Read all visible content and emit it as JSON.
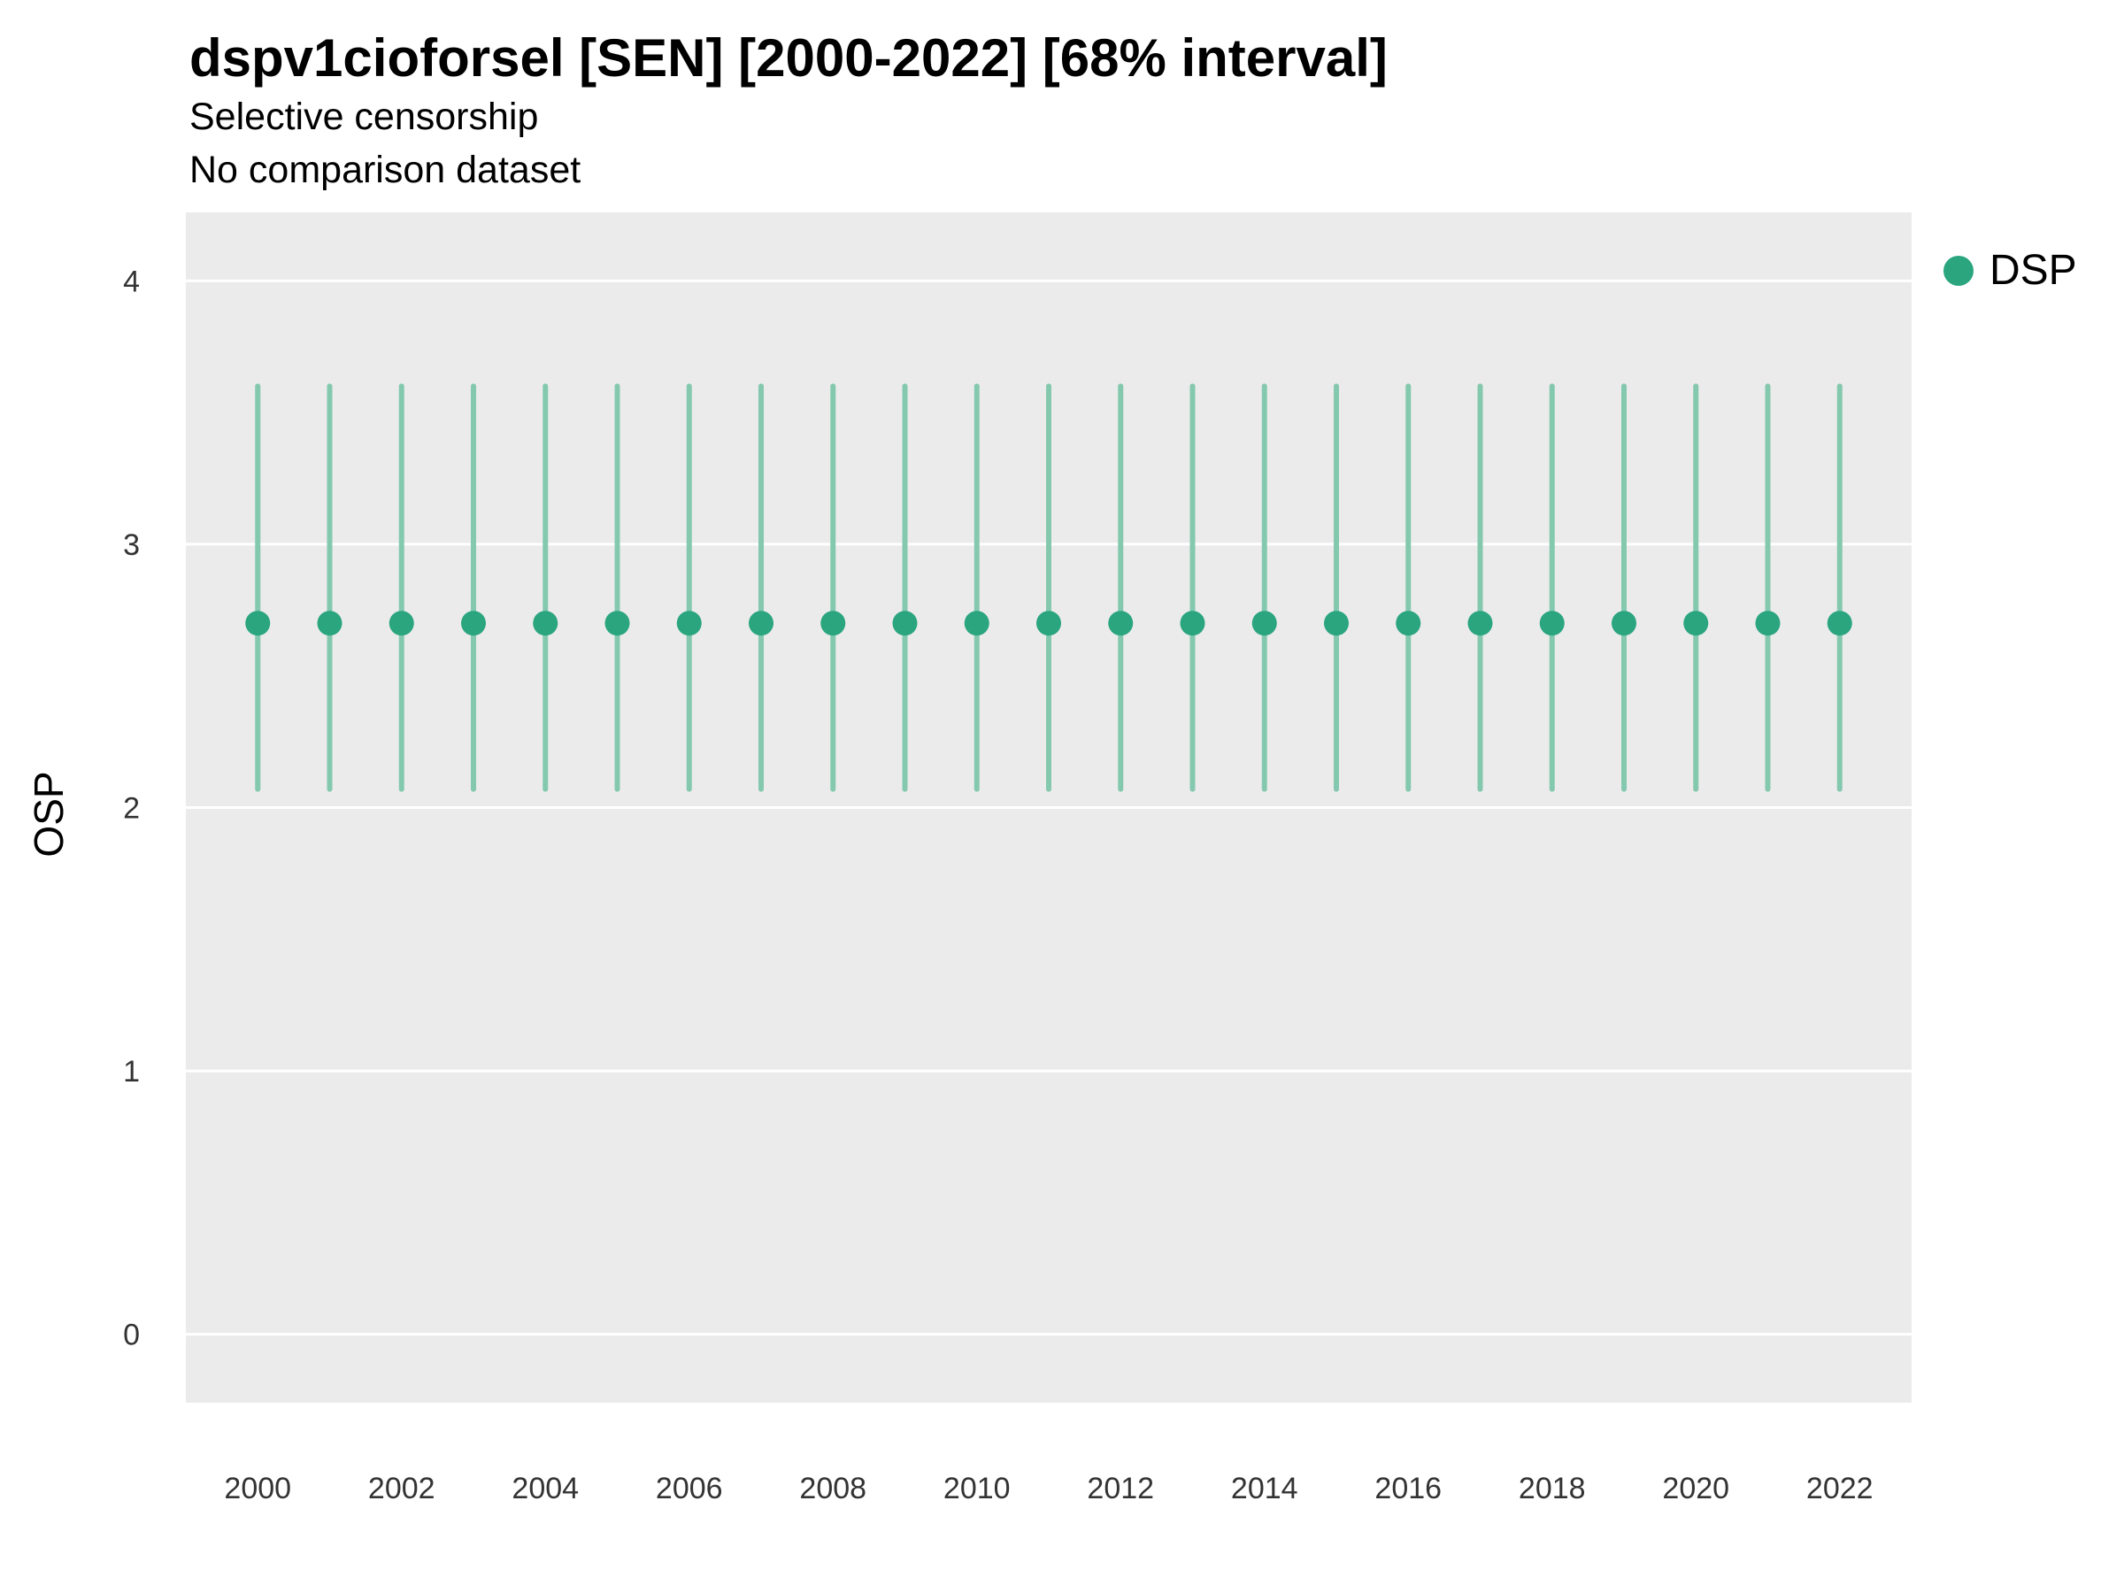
{
  "colors": {
    "panel_bg": "#EBEBEB",
    "grid": "#FFFFFF",
    "tick_text": "#333333",
    "accent": "#2AA57E"
  },
  "chart_data": {
    "type": "scatter",
    "title": "dspv1cioforsel [SEN] [2000-2022] [68% interval]",
    "subtitle": "Selective censorship",
    "subtitle2": "No comparison dataset",
    "xlabel": "",
    "ylabel": "OSP",
    "interval": "68%",
    "legend_position": "right",
    "grid": "horizontal-major-only",
    "xlim": [
      1999,
      2023
    ],
    "ylim": [
      -0.26,
      4.26
    ],
    "xticks": [
      2000,
      2002,
      2004,
      2006,
      2008,
      2010,
      2012,
      2014,
      2016,
      2018,
      2020,
      2022
    ],
    "yticks": [
      0,
      1,
      2,
      3,
      4
    ],
    "series": [
      {
        "name": "DSP",
        "color": "#2AA57E",
        "interval_color": "#84C9AF",
        "x": [
          2000,
          2001,
          2002,
          2003,
          2004,
          2005,
          2006,
          2007,
          2008,
          2009,
          2010,
          2011,
          2012,
          2013,
          2014,
          2015,
          2016,
          2017,
          2018,
          2019,
          2020,
          2021,
          2022
        ],
        "y": [
          2.7,
          2.7,
          2.7,
          2.7,
          2.7,
          2.7,
          2.7,
          2.7,
          2.7,
          2.7,
          2.7,
          2.7,
          2.7,
          2.7,
          2.7,
          2.7,
          2.7,
          2.7,
          2.7,
          2.7,
          2.7,
          2.7,
          2.7
        ],
        "y_low": [
          2.07,
          2.07,
          2.07,
          2.07,
          2.07,
          2.07,
          2.07,
          2.07,
          2.07,
          2.07,
          2.07,
          2.07,
          2.07,
          2.07,
          2.07,
          2.07,
          2.07,
          2.07,
          2.07,
          2.07,
          2.07,
          2.07,
          2.07
        ],
        "y_high": [
          3.6,
          3.6,
          3.6,
          3.6,
          3.6,
          3.6,
          3.6,
          3.6,
          3.6,
          3.6,
          3.6,
          3.6,
          3.6,
          3.6,
          3.6,
          3.6,
          3.6,
          3.6,
          3.6,
          3.6,
          3.6,
          3.6,
          3.6
        ]
      }
    ]
  }
}
